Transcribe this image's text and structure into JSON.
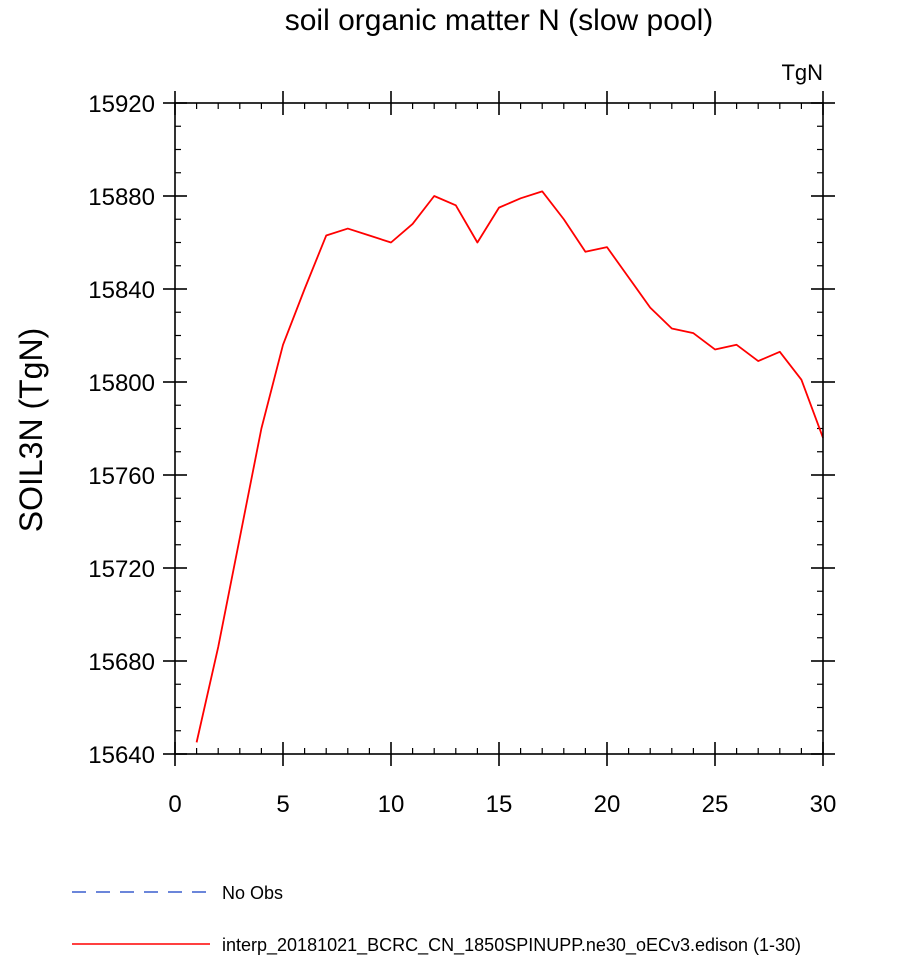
{
  "chart_data": {
    "type": "line",
    "title": "soil organic matter N (slow pool)",
    "ylabel": "SOIL3N  (TgN)",
    "xlabel": "",
    "units_label": "TgN",
    "xlim": [
      0,
      30
    ],
    "ylim": [
      15640,
      15920
    ],
    "xticks": [
      0,
      5,
      10,
      15,
      20,
      25,
      30
    ],
    "yticks": [
      15640,
      15680,
      15720,
      15760,
      15800,
      15840,
      15880,
      15920
    ],
    "series": [
      {
        "name": "No Obs",
        "color": "#3a5fcd",
        "dashed": true,
        "x": [],
        "values": []
      },
      {
        "name": "interp_20181021_BCRC_CN_1850SPINUPP.ne30_oECv3.edison (1-30)",
        "color": "#ff0000",
        "dashed": false,
        "x": [
          1,
          2,
          3,
          4,
          5,
          6,
          7,
          8,
          9,
          10,
          11,
          12,
          13,
          14,
          15,
          16,
          17,
          18,
          19,
          20,
          21,
          22,
          23,
          24,
          25,
          26,
          27,
          28,
          29,
          30
        ],
        "values": [
          15645,
          15686,
          15733,
          15780,
          15816,
          15840,
          15863,
          15866,
          15863,
          15860,
          15868,
          15880,
          15876,
          15860,
          15875,
          15879,
          15882,
          15870,
          15856,
          15858,
          15845,
          15832,
          15823,
          15821,
          15814,
          15816,
          15809,
          15813,
          15801,
          15776
        ]
      }
    ],
    "legend": [
      {
        "label": "No Obs",
        "color": "#3a5fcd",
        "dashed": true
      },
      {
        "label": "interp_20181021_BCRC_CN_1850SPINUPP.ne30_oECv3.edison (1-30)",
        "color": "#ff0000",
        "dashed": false
      }
    ]
  }
}
